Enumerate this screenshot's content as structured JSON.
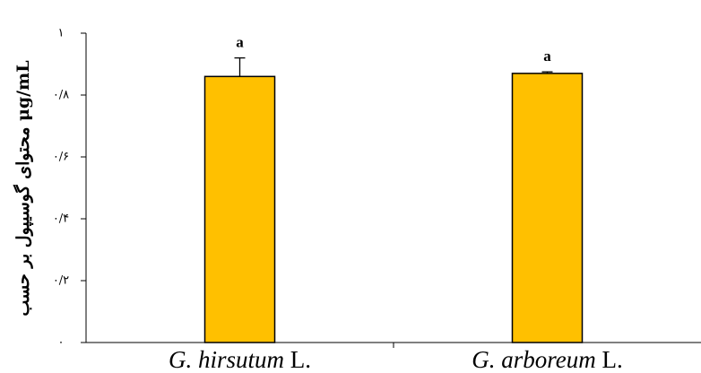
{
  "chart_data": {
    "type": "bar",
    "title": "",
    "ylabel": "محتوای گوسیپول بر حسب μg/mL",
    "xlabel": "",
    "categories": [
      {
        "italic": "G. hirsutum",
        "suffix": " L."
      },
      {
        "italic": "G. arboreum",
        "suffix": " L."
      }
    ],
    "values": [
      0.86,
      0.87
    ],
    "errors": [
      0.06,
      0.005
    ],
    "significance": [
      "a",
      "a"
    ],
    "ylim": [
      0,
      1
    ],
    "yticks": [
      0,
      0.2,
      0.4,
      0.6,
      0.8,
      1
    ],
    "ytick_labels": [
      "۰",
      "۰/۲",
      "۰/۴",
      "۰/۶",
      "۰/۸",
      "۱"
    ],
    "bar_color": "#FFC000",
    "bar_edge_color": "#000000",
    "grid": false,
    "legend": "none"
  }
}
